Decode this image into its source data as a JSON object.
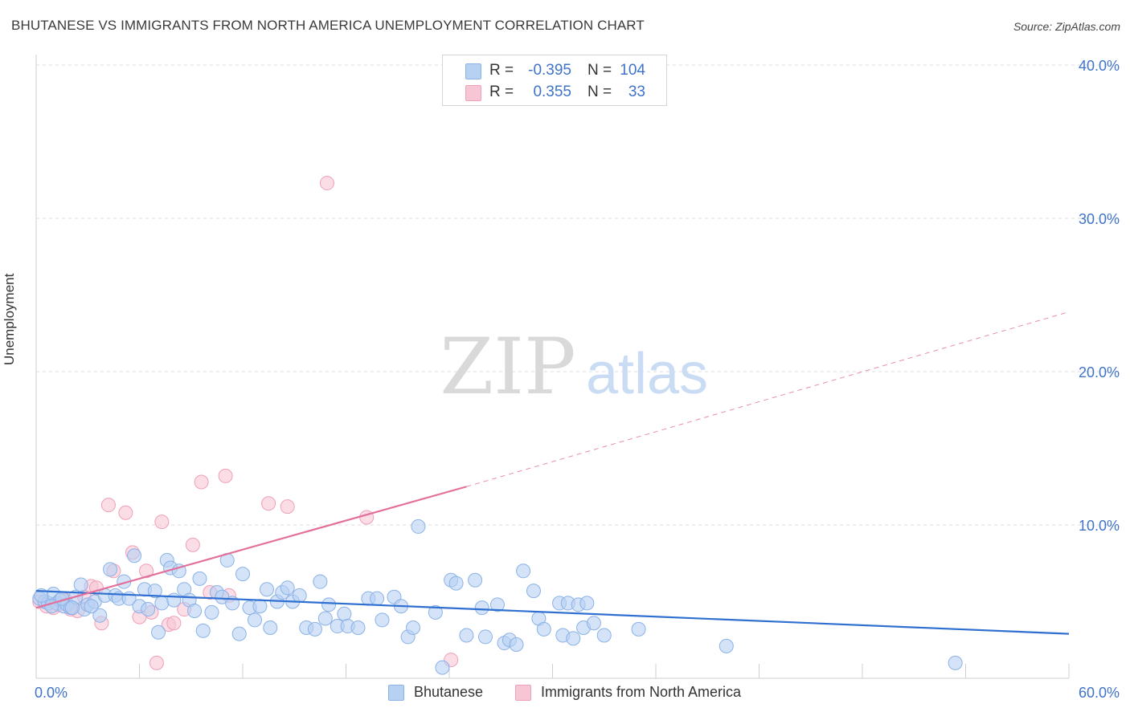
{
  "title": "BHUTANESE VS IMMIGRANTS FROM NORTH AMERICA UNEMPLOYMENT CORRELATION CHART",
  "source": "Source: ZipAtlas.com",
  "watermark": {
    "zip": "ZIP",
    "atlas": "atlas"
  },
  "colors": {
    "blue_fill": "#b7d1f3",
    "blue_stroke": "#8ab2e6",
    "blue_line": "#2e6fd0",
    "pink_fill": "#f7c6d4",
    "pink_stroke": "#ef9fb8",
    "pink_line": "#e2709a",
    "axis_label": "#3f73c9",
    "grid": "#dddddd"
  },
  "legend": {
    "rows": [
      {
        "r_label": "R =",
        "r_value": "-0.395",
        "n_label": "N =",
        "n_value": "104",
        "color": "#b7d1f3",
        "border": "#8ab2e6"
      },
      {
        "r_label": "R =",
        "r_value": "0.355",
        "n_label": "N =",
        "n_value": "33",
        "color": "#f7c6d4",
        "border": "#ef9fb8"
      }
    ]
  },
  "bottom_legend": [
    {
      "label": "Bhutanese",
      "color": "#b7d1f3",
      "border": "#8ab2e6"
    },
    {
      "label": "Immigrants from North America",
      "color": "#f7c6d4",
      "border": "#ef9fb8"
    }
  ],
  "chart_data": {
    "type": "scatter",
    "title": "BHUTANESE VS IMMIGRANTS FROM NORTH AMERICA UNEMPLOYMENT CORRELATION CHART",
    "xlabel": "",
    "ylabel": "Unemployment",
    "xlim": [
      0,
      60
    ],
    "ylim": [
      0,
      42
    ],
    "x_tick_labels": [
      "0.0%",
      "60.0%"
    ],
    "y_ticks": [
      10,
      20,
      30,
      40
    ],
    "y_tick_labels": [
      "10.0%",
      "20.0%",
      "30.0%",
      "40.0%"
    ],
    "grid": true,
    "series": [
      {
        "name": "Bhutanese",
        "r": -0.395,
        "n": 104,
        "trend": {
          "x0": 0,
          "y0": 5.7,
          "x1": 60,
          "y1": 2.9
        },
        "points": [
          [
            0.2,
            5.2
          ],
          [
            0.5,
            5.0
          ],
          [
            0.7,
            4.9
          ],
          [
            1.0,
            5.5
          ],
          [
            1.2,
            4.9
          ],
          [
            1.4,
            5.1
          ],
          [
            1.6,
            4.7
          ],
          [
            1.8,
            4.8
          ],
          [
            2.0,
            4.6
          ],
          [
            2.3,
            5.3
          ],
          [
            2.6,
            6.1
          ],
          [
            2.8,
            4.5
          ],
          [
            3.0,
            4.8
          ],
          [
            3.4,
            5.0
          ],
          [
            3.7,
            4.1
          ],
          [
            4.0,
            5.4
          ],
          [
            4.3,
            7.1
          ],
          [
            4.6,
            5.4
          ],
          [
            4.8,
            5.2
          ],
          [
            5.1,
            6.3
          ],
          [
            5.4,
            5.2
          ],
          [
            5.7,
            8.0
          ],
          [
            6.0,
            4.7
          ],
          [
            6.3,
            5.8
          ],
          [
            6.5,
            4.5
          ],
          [
            6.9,
            5.7
          ],
          [
            7.1,
            3.0
          ],
          [
            7.3,
            4.9
          ],
          [
            7.6,
            7.7
          ],
          [
            7.8,
            7.2
          ],
          [
            8.0,
            5.1
          ],
          [
            8.3,
            7.0
          ],
          [
            8.6,
            5.8
          ],
          [
            8.9,
            5.1
          ],
          [
            9.2,
            4.4
          ],
          [
            9.5,
            6.5
          ],
          [
            9.7,
            3.1
          ],
          [
            10.2,
            4.3
          ],
          [
            10.5,
            5.6
          ],
          [
            10.8,
            5.3
          ],
          [
            11.1,
            7.7
          ],
          [
            11.4,
            4.9
          ],
          [
            11.8,
            2.9
          ],
          [
            12.0,
            6.8
          ],
          [
            12.4,
            4.6
          ],
          [
            12.7,
            3.8
          ],
          [
            13.0,
            4.7
          ],
          [
            13.4,
            5.8
          ],
          [
            13.6,
            3.3
          ],
          [
            14.0,
            5.0
          ],
          [
            14.3,
            5.6
          ],
          [
            14.6,
            5.9
          ],
          [
            14.9,
            5.0
          ],
          [
            15.3,
            5.4
          ],
          [
            15.7,
            3.3
          ],
          [
            16.2,
            3.2
          ],
          [
            16.5,
            6.3
          ],
          [
            16.8,
            3.9
          ],
          [
            17.0,
            4.8
          ],
          [
            17.5,
            3.4
          ],
          [
            17.9,
            4.2
          ],
          [
            18.1,
            3.4
          ],
          [
            18.7,
            3.3
          ],
          [
            19.3,
            5.2
          ],
          [
            19.8,
            5.2
          ],
          [
            20.1,
            3.8
          ],
          [
            20.8,
            5.3
          ],
          [
            21.2,
            4.7
          ],
          [
            21.6,
            2.7
          ],
          [
            21.9,
            3.3
          ],
          [
            22.2,
            9.9
          ],
          [
            23.2,
            4.3
          ],
          [
            23.6,
            0.7
          ],
          [
            24.1,
            6.4
          ],
          [
            24.4,
            6.2
          ],
          [
            25.0,
            2.8
          ],
          [
            25.5,
            6.4
          ],
          [
            25.9,
            4.6
          ],
          [
            26.1,
            2.7
          ],
          [
            26.8,
            4.8
          ],
          [
            27.2,
            2.3
          ],
          [
            27.5,
            2.5
          ],
          [
            27.9,
            2.2
          ],
          [
            28.3,
            7.0
          ],
          [
            28.9,
            5.7
          ],
          [
            29.2,
            3.9
          ],
          [
            29.5,
            3.2
          ],
          [
            30.4,
            4.9
          ],
          [
            30.6,
            2.8
          ],
          [
            30.9,
            4.9
          ],
          [
            31.2,
            2.6
          ],
          [
            31.5,
            4.8
          ],
          [
            31.8,
            3.3
          ],
          [
            32.0,
            4.9
          ],
          [
            32.4,
            3.6
          ],
          [
            33.0,
            2.8
          ],
          [
            35.0,
            3.2
          ],
          [
            40.1,
            2.1
          ],
          [
            53.4,
            1.0
          ],
          [
            0.3,
            5.4
          ],
          [
            0.9,
            4.7
          ],
          [
            1.5,
            5.2
          ],
          [
            2.1,
            4.6
          ],
          [
            3.2,
            4.7
          ]
        ]
      },
      {
        "name": "Immigrants from North America",
        "r": 0.355,
        "n": 33,
        "trend": {
          "x0": 0,
          "y0": 4.6,
          "x1": 25,
          "y1": 12.5,
          "dash_x1": 60,
          "dash_y1": 23.9
        },
        "points": [
          [
            0.2,
            5.0
          ],
          [
            0.6,
            4.7
          ],
          [
            1.0,
            4.6
          ],
          [
            1.3,
            4.8
          ],
          [
            1.7,
            5.1
          ],
          [
            2.0,
            4.5
          ],
          [
            2.4,
            4.4
          ],
          [
            2.8,
            5.3
          ],
          [
            3.2,
            6.0
          ],
          [
            3.5,
            5.9
          ],
          [
            3.8,
            3.6
          ],
          [
            4.2,
            11.3
          ],
          [
            4.5,
            7.0
          ],
          [
            5.2,
            10.8
          ],
          [
            5.6,
            8.2
          ],
          [
            6.0,
            4.0
          ],
          [
            6.4,
            7.0
          ],
          [
            6.7,
            4.3
          ],
          [
            7.0,
            1.0
          ],
          [
            7.3,
            10.2
          ],
          [
            7.7,
            3.5
          ],
          [
            8.0,
            3.6
          ],
          [
            8.6,
            4.5
          ],
          [
            9.1,
            8.7
          ],
          [
            9.6,
            12.8
          ],
          [
            10.1,
            5.6
          ],
          [
            11.0,
            13.2
          ],
          [
            11.2,
            5.4
          ],
          [
            13.5,
            11.4
          ],
          [
            14.6,
            11.2
          ],
          [
            16.9,
            32.3
          ],
          [
            19.2,
            10.5
          ],
          [
            24.1,
            1.2
          ]
        ]
      }
    ]
  }
}
